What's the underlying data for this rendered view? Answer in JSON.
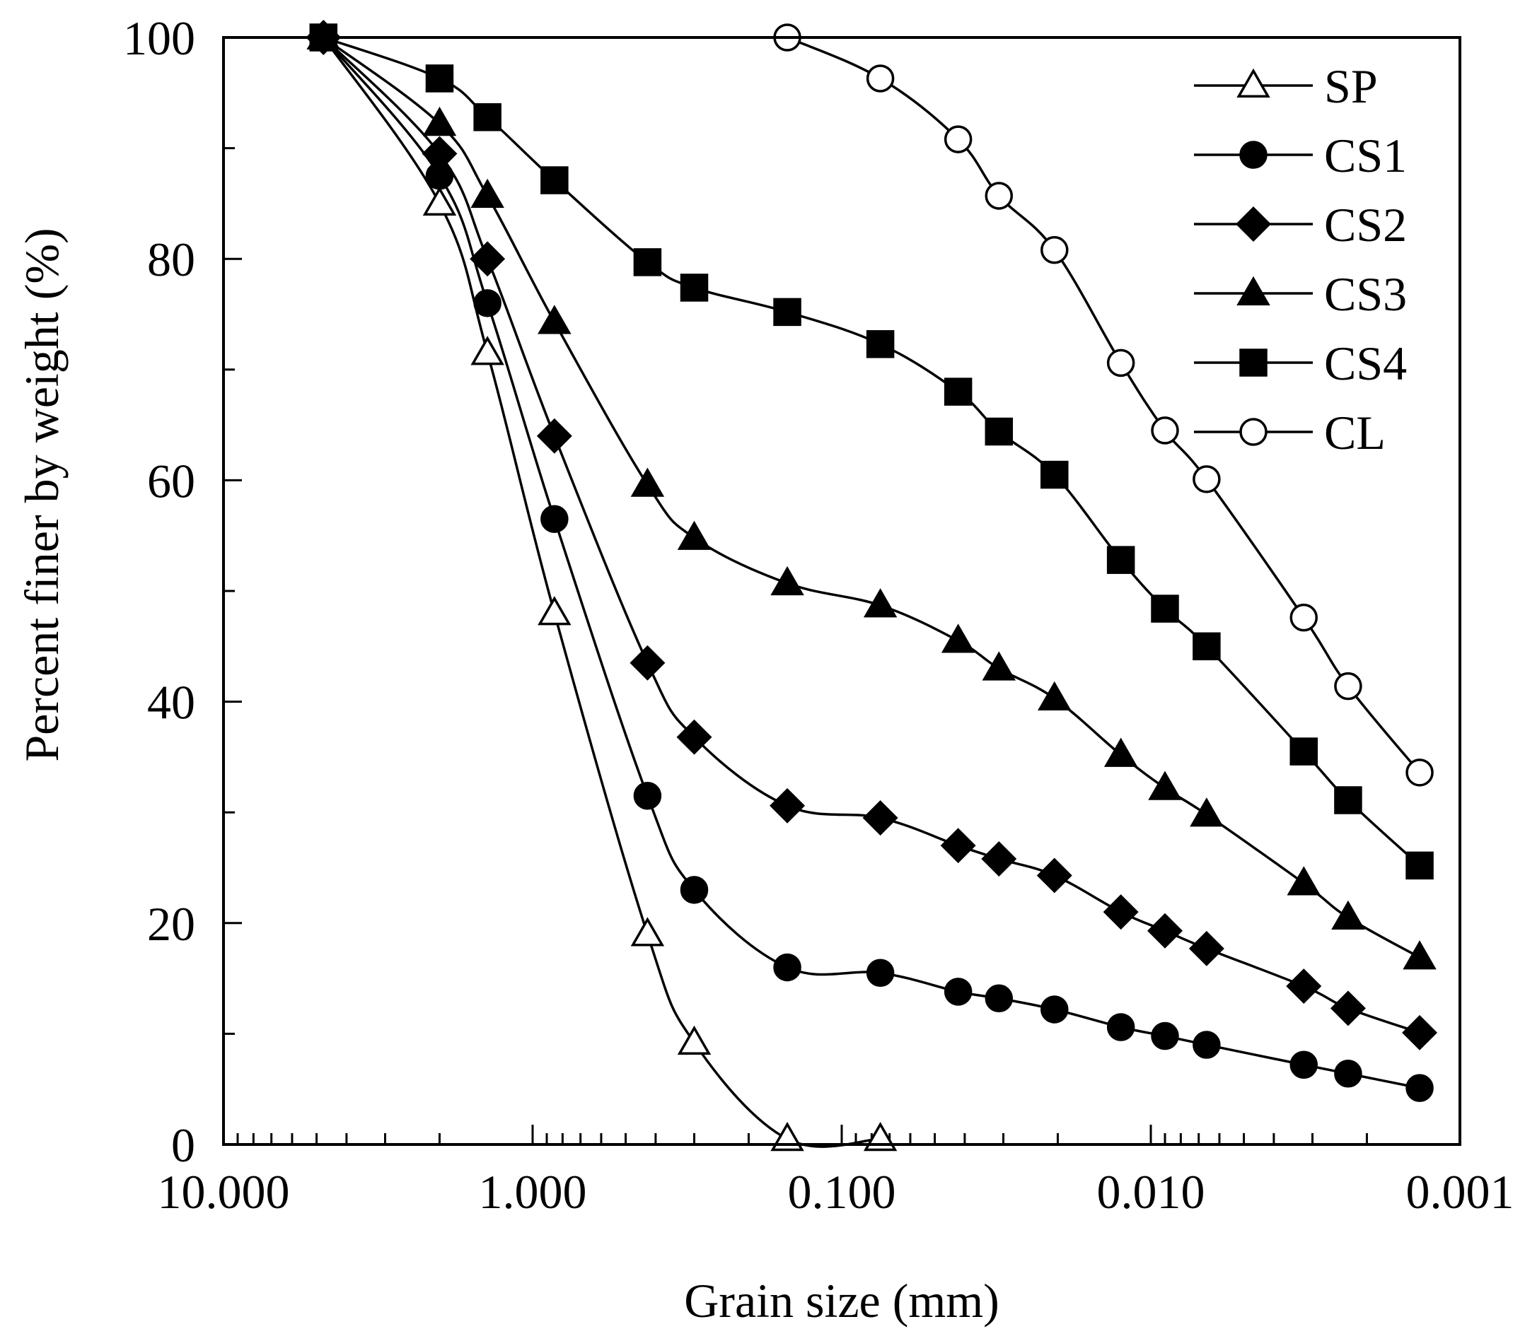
{
  "chart_data": {
    "type": "line",
    "title": "",
    "xlabel": "Grain size (mm)",
    "ylabel": "Percent finer by weight (%)",
    "xscale": "log-reversed",
    "xlim": [
      10,
      0.001
    ],
    "ylim": [
      0,
      100
    ],
    "x_ticks": [
      10,
      1,
      0.1,
      0.01,
      0.001
    ],
    "x_tick_labels": [
      "10.000",
      "1.000",
      "0.100",
      "0.010",
      "0.001"
    ],
    "y_ticks": [
      0,
      20,
      40,
      60,
      80,
      100
    ],
    "y_tick_labels": [
      "0",
      "20",
      "40",
      "60",
      "80",
      "100"
    ],
    "y_minor_ticks": [
      10,
      30,
      50,
      70,
      90
    ],
    "legend_position": "top-right",
    "series": [
      {
        "name": "SP",
        "marker": "triangle-open",
        "x": [
          4.75,
          2.0,
          1.4,
          0.85,
          0.425,
          0.3,
          0.15,
          0.075
        ],
        "y": [
          100,
          85,
          71.5,
          48,
          19,
          9.2,
          0.5,
          0.5
        ]
      },
      {
        "name": "CS1",
        "marker": "circle-filled",
        "x": [
          4.75,
          2.0,
          1.4,
          0.85,
          0.425,
          0.3,
          0.15,
          0.075,
          0.042,
          0.031,
          0.0205,
          0.0125,
          0.009,
          0.0066,
          0.0032,
          0.0023,
          0.00135
        ],
        "y": [
          100,
          87.5,
          76,
          56.5,
          31.5,
          23,
          16,
          15.5,
          13.8,
          13.2,
          12.2,
          10.6,
          9.8,
          9,
          7.2,
          6.4,
          5.1
        ]
      },
      {
        "name": "CS2",
        "marker": "diamond-filled",
        "x": [
          4.75,
          2.0,
          1.4,
          0.85,
          0.425,
          0.3,
          0.15,
          0.075,
          0.042,
          0.031,
          0.0205,
          0.0125,
          0.009,
          0.0066,
          0.0032,
          0.0023,
          0.00135
        ],
        "y": [
          100,
          89.5,
          80,
          64,
          43.5,
          36.8,
          30.6,
          29.5,
          27,
          25.8,
          24.3,
          21,
          19.3,
          17.7,
          14.3,
          12.3,
          10.1
        ]
      },
      {
        "name": "CS3",
        "marker": "triangle-filled",
        "x": [
          4.75,
          2.0,
          1.4,
          0.85,
          0.425,
          0.3,
          0.15,
          0.075,
          0.042,
          0.031,
          0.0205,
          0.0125,
          0.009,
          0.0066,
          0.0032,
          0.0023,
          0.00135
        ],
        "y": [
          100,
          92.2,
          85.7,
          74.3,
          59.6,
          54.8,
          50.7,
          48.7,
          45.5,
          43,
          40.3,
          35.2,
          32.2,
          29.8,
          23.6,
          20.5,
          16.9
        ]
      },
      {
        "name": "CS4",
        "marker": "square-filled",
        "x": [
          4.75,
          2.0,
          1.4,
          0.85,
          0.425,
          0.3,
          0.15,
          0.075,
          0.042,
          0.031,
          0.0205,
          0.0125,
          0.009,
          0.0066,
          0.0032,
          0.0023,
          0.00135
        ],
        "y": [
          100,
          96.3,
          92.8,
          87.1,
          79.7,
          77.4,
          75.2,
          72.3,
          68,
          64.4,
          60.5,
          52.8,
          48.4,
          45,
          35.5,
          31.1,
          25.2
        ]
      },
      {
        "name": "CL",
        "marker": "circle-open",
        "x": [
          0.15,
          0.075,
          0.042,
          0.031,
          0.0205,
          0.0125,
          0.009,
          0.0066,
          0.0032,
          0.0023,
          0.00135
        ],
        "y": [
          100,
          96.3,
          90.8,
          85.7,
          80.8,
          70.6,
          64.5,
          60.1,
          47.6,
          41.4,
          33.6
        ]
      }
    ]
  }
}
